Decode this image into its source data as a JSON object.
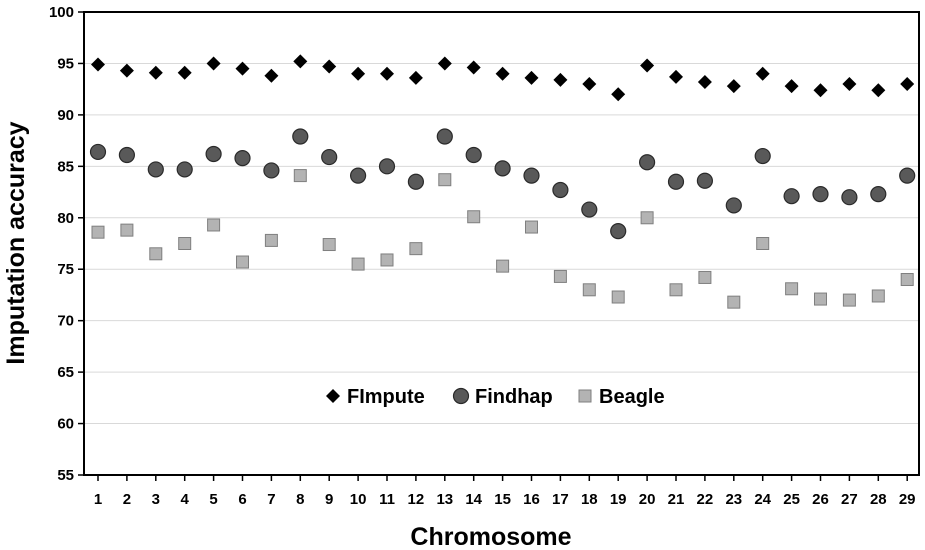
{
  "chart_data": {
    "type": "scatter",
    "xlabel": "Chromosome",
    "ylabel": "Imputation accuracy",
    "ylim": [
      55,
      100
    ],
    "yticks": [
      55,
      60,
      65,
      70,
      75,
      80,
      85,
      90,
      95,
      100
    ],
    "grid": "horizontal",
    "legend_position": "bottom-center-inside",
    "categories": [
      "1",
      "2",
      "3",
      "4",
      "5",
      "6",
      "7",
      "8",
      "9",
      "10",
      "11",
      "12",
      "13",
      "14",
      "15",
      "16",
      "17",
      "18",
      "19",
      "20",
      "21",
      "22",
      "23",
      "24",
      "25",
      "26",
      "27",
      "28",
      "29"
    ],
    "series": [
      {
        "name": "FImpute",
        "marker": "diamond",
        "color": "#000000",
        "values": [
          94.9,
          94.3,
          94.1,
          94.1,
          95.0,
          94.5,
          93.8,
          95.2,
          94.7,
          94.0,
          94.0,
          93.6,
          95.0,
          94.6,
          94.0,
          93.6,
          93.4,
          93.0,
          92.0,
          94.8,
          93.7,
          93.2,
          92.8,
          94.0,
          92.8,
          92.4,
          93.0,
          92.4,
          93.0
        ]
      },
      {
        "name": "Findhap",
        "marker": "circle",
        "color": "#595959",
        "values": [
          86.4,
          86.1,
          84.7,
          84.7,
          86.2,
          85.8,
          84.6,
          87.9,
          85.9,
          84.1,
          85.0,
          83.5,
          87.9,
          86.1,
          84.8,
          84.1,
          82.7,
          80.8,
          78.7,
          85.4,
          83.5,
          83.6,
          81.2,
          86.0,
          82.1,
          82.3,
          82.0,
          82.3,
          84.1
        ]
      },
      {
        "name": "Beagle",
        "marker": "square",
        "color": "#b3b3b3",
        "values": [
          78.6,
          78.8,
          76.5,
          77.5,
          79.3,
          75.7,
          77.8,
          84.1,
          77.4,
          75.5,
          75.9,
          77.0,
          83.7,
          80.1,
          75.3,
          79.1,
          74.3,
          73.0,
          72.3,
          80.0,
          73.0,
          74.2,
          71.8,
          77.5,
          73.1,
          72.1,
          72.0,
          72.4,
          74.0
        ]
      }
    ]
  }
}
